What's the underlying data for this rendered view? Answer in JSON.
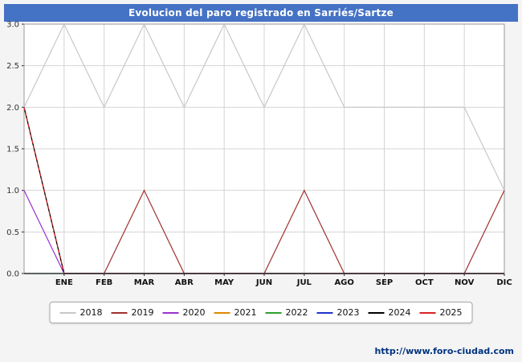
{
  "title": "Evolucion del paro registrado en Sarriés/Sartze",
  "footer_url": "http://www.foro-ciudad.com",
  "colors": {
    "title_bar": "#4472c4",
    "page_bg": "#f4f4f4",
    "plot_bg": "#ffffff",
    "grid": "#d4d4d4",
    "plot_border": "#999999",
    "axis": "#222222",
    "footer_url": "#003380"
  },
  "chart_data": {
    "type": "line",
    "title": "Evolucion del paro registrado en Sarriés/Sartze",
    "x_labels": [
      "ENE",
      "FEB",
      "MAR",
      "ABR",
      "MAY",
      "JUN",
      "JUL",
      "AGO",
      "SEP",
      "OCT",
      "NOV",
      "DIC"
    ],
    "x_note": "Each series has 13 points: the first is plotted at the left axis edge just before ENE, the remaining 12 at the labeled month gridlines.",
    "y_ticks": [
      "3.0",
      "2.5",
      "2.0",
      "1.5",
      "1.0",
      "0.5",
      "0.0"
    ],
    "ylim": [
      0,
      3
    ],
    "grid": true,
    "legend_position": "bottom",
    "series": [
      {
        "name": "2018",
        "color": "#c8c8c8",
        "dashed": false,
        "values": [
          2,
          3,
          2,
          3,
          2,
          3,
          2,
          3,
          2,
          2,
          2,
          2,
          1
        ]
      },
      {
        "name": "2019",
        "color": "#a03030",
        "dashed": false,
        "values": [
          2,
          0,
          0,
          1,
          0,
          0,
          0,
          1,
          0,
          0,
          0,
          0,
          1
        ]
      },
      {
        "name": "2020",
        "color": "#9932cc",
        "dashed": false,
        "values": [
          1,
          0,
          0,
          0,
          0,
          0,
          0,
          0,
          0,
          0,
          0,
          0,
          0
        ]
      },
      {
        "name": "2021",
        "color": "#e08800",
        "dashed": false,
        "values": [
          0,
          0,
          0,
          0,
          0,
          0,
          0,
          0,
          0,
          0,
          0,
          0,
          0
        ]
      },
      {
        "name": "2022",
        "color": "#2ca02c",
        "dashed": false,
        "values": [
          0,
          0,
          0,
          0,
          0,
          0,
          0,
          0,
          0,
          0,
          0,
          0,
          0
        ]
      },
      {
        "name": "2023",
        "color": "#2233cc",
        "dashed": false,
        "values": [
          0,
          0,
          0,
          0,
          0,
          0,
          0,
          0,
          0,
          0,
          0,
          0,
          0
        ]
      },
      {
        "name": "2024",
        "color": "#000000",
        "dashed": false,
        "values": [
          2,
          0,
          0,
          0,
          0,
          0,
          0,
          0,
          0,
          0,
          0,
          0,
          0
        ]
      },
      {
        "name": "2025",
        "color": "#dd2222",
        "dashed": true,
        "values": [
          2,
          0,
          0,
          0,
          0,
          0,
          0,
          0,
          0,
          0,
          0,
          0,
          0
        ]
      }
    ]
  }
}
